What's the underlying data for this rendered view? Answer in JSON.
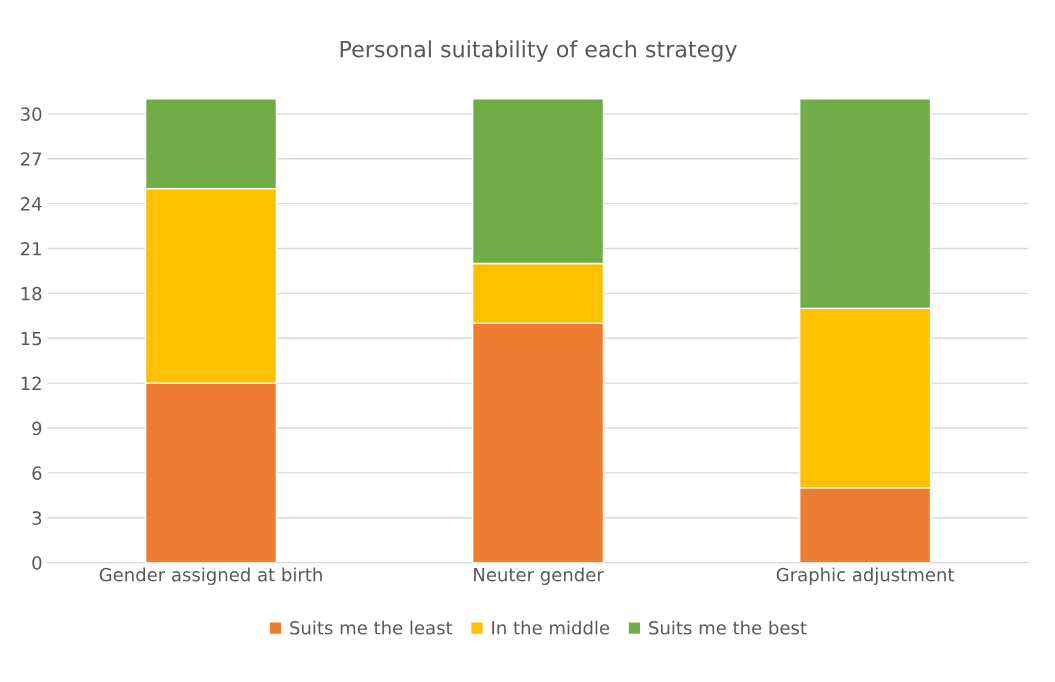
{
  "chart_data": {
    "type": "bar",
    "title": "Personal suitability of each strategy",
    "categories": [
      "Gender assigned at birth",
      "Neuter gender",
      "Graphic adjustment"
    ],
    "stacked": true,
    "series": [
      {
        "name": "Suits me the least",
        "color": "#ed7d31",
        "values": [
          12,
          16,
          5
        ]
      },
      {
        "name": "In the middle",
        "color": "#ffc000",
        "values": [
          13,
          4,
          12
        ]
      },
      {
        "name": "Suits me the best",
        "color": "#70ad47",
        "values": [
          6,
          11,
          14
        ]
      }
    ],
    "ylim": [
      0,
      31
    ],
    "yticks": [
      0,
      3,
      6,
      9,
      12,
      15,
      18,
      21,
      24,
      27,
      30
    ],
    "grid": "y",
    "legend": "bottom"
  }
}
